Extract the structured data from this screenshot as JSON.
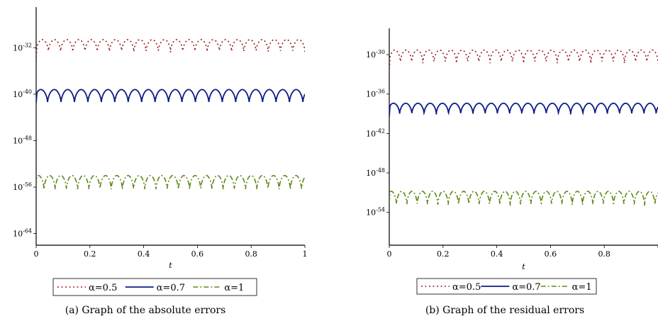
{
  "chart_data": [
    {
      "type": "line",
      "caption": "(a) Graph of the absolute errors",
      "xlabel": "t",
      "ylabel": "",
      "xlim": [
        0,
        1
      ],
      "yscale": "log",
      "ylim_exponent": [
        -66,
        -25
      ],
      "x_ticks": [
        "0",
        "0.2",
        "0.4",
        "0.6",
        "0.8",
        "1"
      ],
      "y_ticks": [
        {
          "exp": -32,
          "label_base": "10",
          "label_exp": "-32"
        },
        {
          "exp": -40,
          "label_base": "10",
          "label_exp": "-40"
        },
        {
          "exp": -48,
          "label_base": "10",
          "label_exp": "-48"
        },
        {
          "exp": -56,
          "label_base": "10",
          "label_exp": "-56"
        },
        {
          "exp": -64,
          "label_base": "10",
          "label_exp": "-64"
        }
      ],
      "grid": false,
      "legend_position": "below",
      "series": [
        {
          "name": "α=0.5",
          "style": "dotted",
          "color": "#9b1b1b",
          "log10_level": -30.6,
          "arch_count": 22,
          "dip_depth": 2.2
        },
        {
          "name": "α=0.7",
          "style": "solid",
          "color": "#0c1d86",
          "log10_level": -39.2,
          "arch_count": 20,
          "dip_depth": 2.4
        },
        {
          "name": "α=1",
          "style": "dashdot",
          "color": "#5a8a16",
          "log10_level": -54.0,
          "arch_count": 24,
          "dip_depth": 2.6
        }
      ]
    },
    {
      "type": "line",
      "caption": "(b) Graph of the residual errors",
      "xlabel": "t",
      "ylabel": "",
      "xlim": [
        0,
        1
      ],
      "yscale": "log",
      "ylim_exponent": [
        -59,
        -26
      ],
      "x_ticks": [
        "0",
        "0.2",
        "0.4",
        "0.6",
        "0.8",
        ""
      ],
      "y_ticks": [
        {
          "exp": -30,
          "label_base": "10",
          "label_exp": "-30"
        },
        {
          "exp": -36,
          "label_base": "10",
          "label_exp": "-36"
        },
        {
          "exp": -42,
          "label_base": "10",
          "label_exp": "-42"
        },
        {
          "exp": -48,
          "label_base": "10",
          "label_exp": "-48"
        },
        {
          "exp": -54,
          "label_base": "10",
          "label_exp": "-54"
        }
      ],
      "grid": false,
      "legend_position": "below",
      "series": [
        {
          "name": "α=0.5",
          "style": "dotted",
          "color": "#9b1b1b",
          "log10_level": -29.3,
          "arch_count": 24,
          "dip_depth": 2.0
        },
        {
          "name": "α=0.7",
          "style": "solid",
          "color": "#0c1d86",
          "log10_level": -37.4,
          "arch_count": 22,
          "dip_depth": 1.7
        },
        {
          "name": "α=1",
          "style": "dashdot",
          "color": "#5a8a16",
          "log10_level": -50.8,
          "arch_count": 26,
          "dip_depth": 2.2
        }
      ]
    }
  ]
}
